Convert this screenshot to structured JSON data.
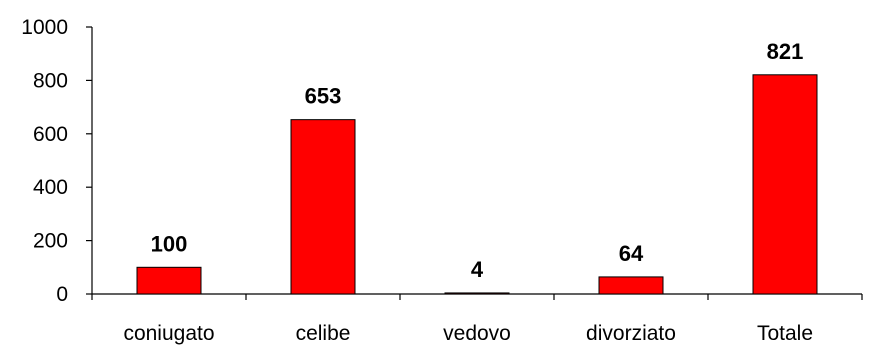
{
  "chart_data": {
    "type": "bar",
    "categories": [
      "coniugato",
      "celibe",
      "vedovo",
      "divorziato",
      "Totale"
    ],
    "values": [
      100,
      653,
      4,
      64,
      821
    ],
    "data_labels": [
      "100",
      "653",
      "4",
      "64",
      "821"
    ],
    "yticks": [
      "0",
      "200",
      "400",
      "600",
      "800",
      "1000"
    ],
    "title": "",
    "xlabel": "",
    "ylabel": "",
    "ylim": [
      0,
      1000
    ],
    "grid": false,
    "legend": "none",
    "bar_color": "#ff0000"
  }
}
